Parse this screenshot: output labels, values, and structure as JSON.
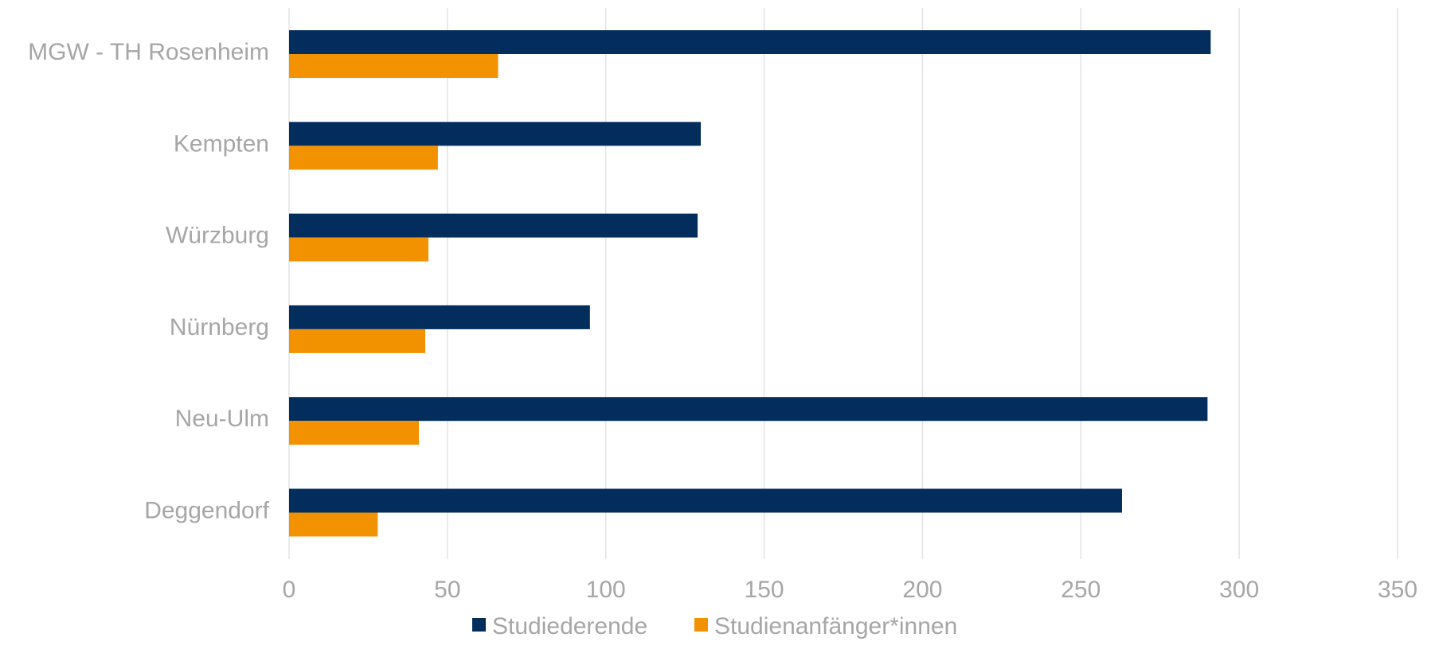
{
  "chart_data": {
    "type": "bar",
    "orientation": "horizontal",
    "categories": [
      "MGW - TH Rosenheim",
      "Kempten",
      "Würzburg",
      "Nürnberg",
      "Neu-Ulm",
      "Deggendorf"
    ],
    "series": [
      {
        "name": "Studiederende",
        "color": "#022d5c",
        "values": [
          291,
          130,
          129,
          95,
          290,
          263
        ]
      },
      {
        "name": "Studienanfänger*innen",
        "color": "#f39200",
        "values": [
          66,
          47,
          44,
          43,
          41,
          28
        ]
      }
    ],
    "xlim": [
      0,
      350
    ],
    "xticks": [
      0,
      50,
      100,
      150,
      200,
      250,
      300,
      350
    ],
    "title": "",
    "xlabel": "",
    "ylabel": "",
    "grid": "vertical",
    "legend": "bottom-center",
    "colors": {
      "label_text": "#a6a6a6",
      "gridline": "#e3e3e3"
    }
  }
}
